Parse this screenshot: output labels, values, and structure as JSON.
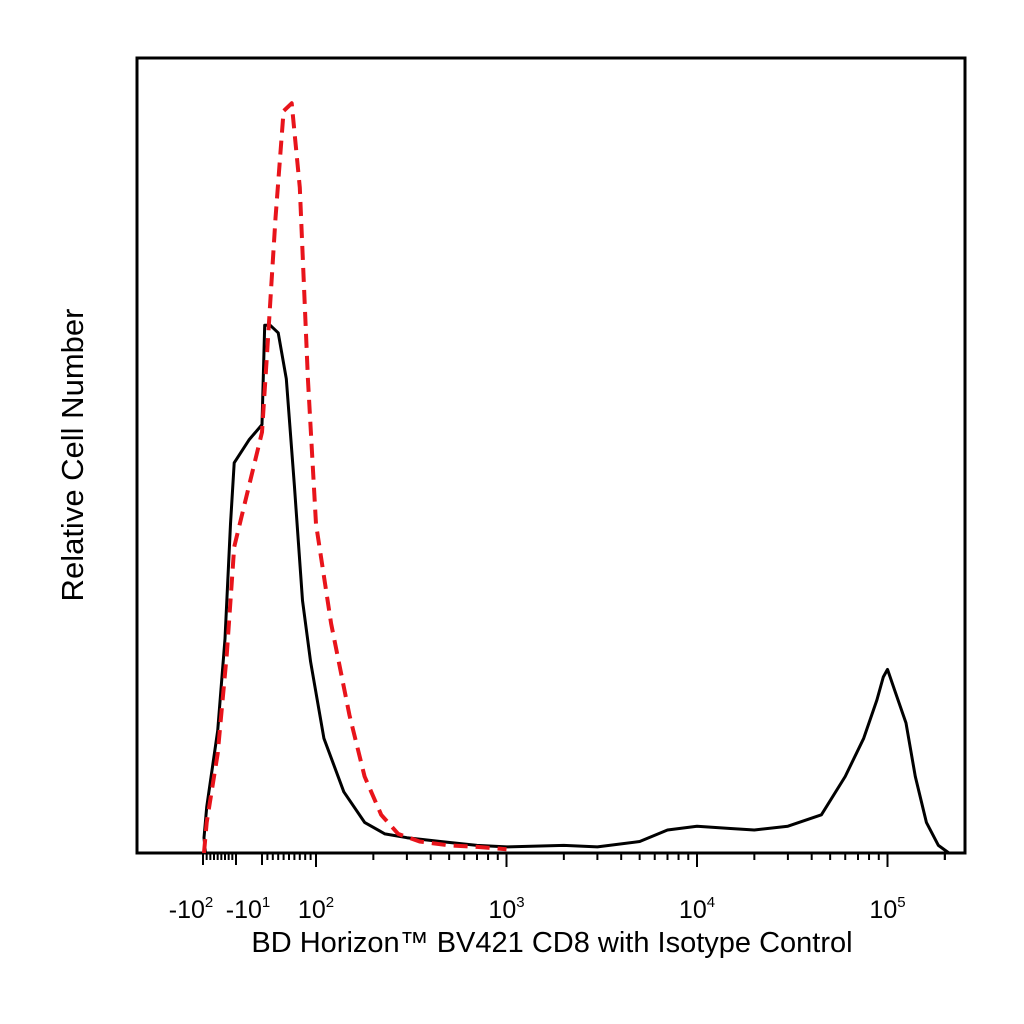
{
  "chart_data": {
    "type": "line",
    "xlabel": "BD Horizon™ BV421 CD8 with Isotype Control",
    "ylabel": "Relative Cell Number",
    "x_scale": "biexponential",
    "xlim": [
      -300,
      250000
    ],
    "ylim": [
      0,
      1.0
    ],
    "grid": false,
    "x_tick_labels": [
      {
        "x": -100,
        "base": "-10",
        "exp": "2"
      },
      {
        "x": -10,
        "base": "-10",
        "exp": "1"
      },
      {
        "x": 100,
        "base": "10",
        "exp": "2"
      },
      {
        "x": 1000,
        "base": "10",
        "exp": "3"
      },
      {
        "x": 10000,
        "base": "10",
        "exp": "4"
      },
      {
        "x": 100000,
        "base": "10",
        "exp": "5"
      }
    ],
    "series": [
      {
        "style": "solid",
        "color": "#000000",
        "points": [
          [
            -150,
            0.0
          ],
          [
            -120,
            0.02
          ],
          [
            -90,
            0.06
          ],
          [
            -60,
            0.16
          ],
          [
            -40,
            0.28
          ],
          [
            -25,
            0.43
          ],
          [
            -15,
            0.51
          ],
          [
            -5,
            0.54
          ],
          [
            0,
            0.56
          ],
          [
            5,
            0.69
          ],
          [
            15,
            0.69
          ],
          [
            30,
            0.68
          ],
          [
            45,
            0.62
          ],
          [
            60,
            0.48
          ],
          [
            75,
            0.33
          ],
          [
            90,
            0.25
          ],
          [
            110,
            0.15
          ],
          [
            140,
            0.08
          ],
          [
            180,
            0.04
          ],
          [
            230,
            0.025
          ],
          [
            300,
            0.02
          ],
          [
            450,
            0.015
          ],
          [
            700,
            0.01
          ],
          [
            1000,
            0.008
          ],
          [
            2000,
            0.01
          ],
          [
            3000,
            0.008
          ],
          [
            5000,
            0.015
          ],
          [
            7000,
            0.03
          ],
          [
            10000,
            0.035
          ],
          [
            15000,
            0.032
          ],
          [
            20000,
            0.03
          ],
          [
            30000,
            0.035
          ],
          [
            45000,
            0.05
          ],
          [
            60000,
            0.1
          ],
          [
            75000,
            0.15
          ],
          [
            88000,
            0.2
          ],
          [
            95000,
            0.23
          ],
          [
            100000,
            0.24
          ],
          [
            110000,
            0.21
          ],
          [
            125000,
            0.17
          ],
          [
            140000,
            0.1
          ],
          [
            160000,
            0.04
          ],
          [
            185000,
            0.01
          ],
          [
            210000,
            0.0
          ]
        ]
      },
      {
        "style": "dashed",
        "color": "#e8141b",
        "points": [
          [
            -120,
            0.0
          ],
          [
            -90,
            0.04
          ],
          [
            -60,
            0.13
          ],
          [
            -35,
            0.26
          ],
          [
            -15,
            0.4
          ],
          [
            0,
            0.55
          ],
          [
            10,
            0.66
          ],
          [
            25,
            0.83
          ],
          [
            40,
            0.97
          ],
          [
            55,
            0.98
          ],
          [
            70,
            0.87
          ],
          [
            85,
            0.62
          ],
          [
            100,
            0.43
          ],
          [
            120,
            0.3
          ],
          [
            150,
            0.18
          ],
          [
            180,
            0.1
          ],
          [
            220,
            0.05
          ],
          [
            270,
            0.025
          ],
          [
            350,
            0.015
          ],
          [
            500,
            0.01
          ],
          [
            700,
            0.008
          ],
          [
            1000,
            0.005
          ]
        ]
      }
    ]
  }
}
